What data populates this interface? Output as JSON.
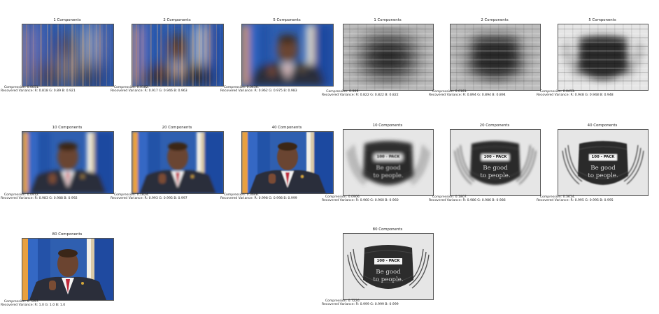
{
  "colour_panels": [
    {
      "title": "1 Components",
      "compression": "Compression: 0.0051.",
      "variance": "Recovered Variance:  R: 0.818  G: 0.89  B: 0.921",
      "level": 1
    },
    {
      "title": "2 Components",
      "compression": "Compression: 0.0182.",
      "variance": "Recovered Variance:  R: 0.917  G: 0.946  B: 0.963",
      "level": 2
    },
    {
      "title": "5 Components",
      "compression": "Compression: 0.0456.",
      "variance": "Recovered Variance:  R: 0.962  G: 0.975  B: 0.983",
      "level": 3
    },
    {
      "title": "10 Components",
      "compression": "Compression: 0.0912.",
      "variance": "Recovered Variance:  R: 0.983  G: 0.988  B: 0.992",
      "level": 4
    },
    {
      "title": "20 Components",
      "compression": "Compression: 0.1824.",
      "variance": "Recovered Variance:  R: 0.993  G: 0.995  B: 0.997",
      "level": 5
    },
    {
      "title": "40 Components",
      "compression": "Compression: 0.3648.",
      "variance": "Recovered Variance:  R: 0.998  G: 0.998  B: 0.999",
      "level": 6
    },
    {
      "title": "80 Components",
      "compression": "Compression: 0.7297.",
      "variance": "Recovered Variance:  R: 1.0  G: 1.0  B: 1.0",
      "level": 7
    }
  ],
  "mask_panels": [
    {
      "title": "1 Components",
      "compression": "Compression: 0.009.",
      "variance": "Recovered Variance:  R: 0.822  G: 0.822  B: 0.822",
      "level": 1
    },
    {
      "title": "2 Components",
      "compression": "Compression: 0.0181.",
      "variance": "Recovered Variance:  R: 0.894  G: 0.894  B: 0.894",
      "level": 2
    },
    {
      "title": "5 Components",
      "compression": "Compression: 0.0453.",
      "variance": "Recovered Variance:  R: 0.948  G: 0.948  B: 0.948",
      "level": 3
    },
    {
      "title": "10 Components",
      "compression": "Compression: 0.0906.",
      "variance": "Recovered Variance:  R: 0.960  G: 0.960  B: 0.960",
      "level": 4
    },
    {
      "title": "20 Components",
      "compression": "Compression: 0.1807.",
      "variance": "Recovered Variance:  R: 0.986  G: 0.986  B: 0.986",
      "level": 5
    },
    {
      "title": "40 Components",
      "compression": "Compression: 0.3614.",
      "variance": "Recovered Variance:  R: 0.995  G: 0.995  B: 0.995",
      "level": 6
    },
    {
      "title": "80 Components",
      "compression": "Compression: 0.7226.",
      "variance": "Recovered Variance:  R: 0.999  G: 0.999  B: 0.999",
      "level": 7
    }
  ],
  "mask_text": {
    "label": "100 - PACK",
    "line1": "Be good",
    "line2": "to people."
  }
}
